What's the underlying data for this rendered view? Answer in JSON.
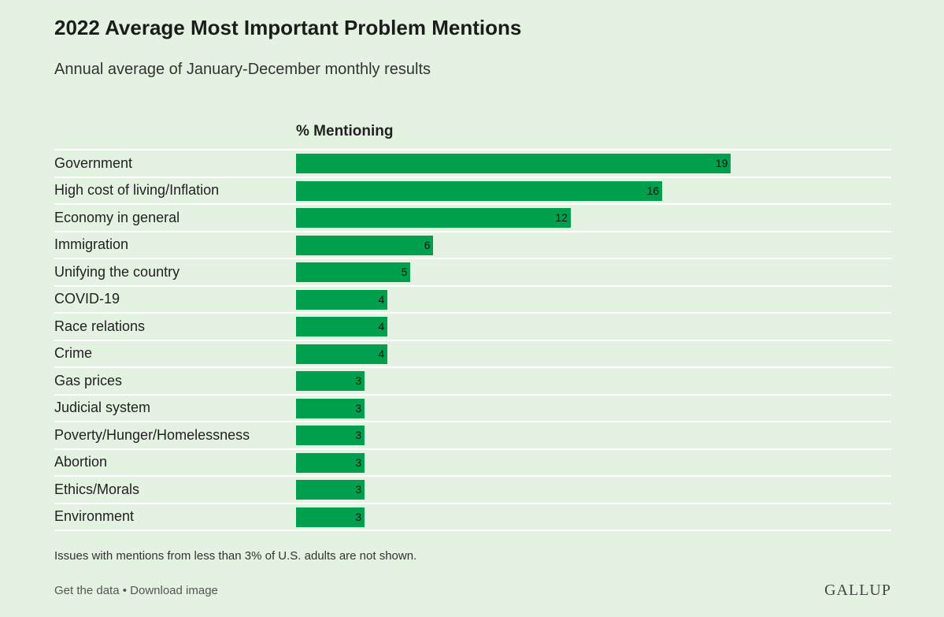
{
  "chart_data": {
    "type": "bar",
    "orientation": "horizontal",
    "title": "2022 Average Most Important Problem Mentions",
    "subtitle": "Annual average of January-December monthly results",
    "value_header": "% Mentioning",
    "categories": [
      "Government",
      "High cost of living/Inflation",
      "Economy in general",
      "Immigration",
      "Unifying the country",
      "COVID-19",
      "Race relations",
      "Crime",
      "Gas prices",
      "Judicial system",
      "Poverty/Hunger/Homelessness",
      "Abortion",
      "Ethics/Morals",
      "Environment"
    ],
    "values": [
      19,
      16,
      12,
      6,
      5,
      4,
      4,
      4,
      3,
      3,
      3,
      3,
      3,
      3
    ],
    "xlim": [
      0,
      26
    ],
    "bar_color": "#009f4d",
    "grid": false
  },
  "note": "Issues with mentions from less than 3% of U.S. adults are not shown.",
  "footer": {
    "get_data": "Get the data",
    "separator": " • ",
    "download": "Download image",
    "brand": "GALLUP"
  }
}
